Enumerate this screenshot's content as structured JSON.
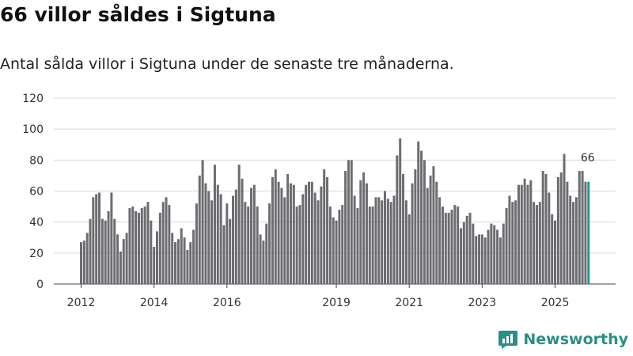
{
  "title": "66 villor såldes i Sigtuna",
  "subtitle": "Antal sålda villor i Sigtuna under de senaste tre månaderna.",
  "brand": {
    "name": "Newsworthy",
    "icon": "newsworthy-logo-icon",
    "color": "#2a8f86"
  },
  "colors": {
    "bar": "#6d6c71",
    "latest": "#1b9a8f"
  },
  "chart_data": {
    "type": "bar",
    "title": "66 villor såldes i Sigtuna",
    "subtitle": "Antal sålda villor i Sigtuna under de senaste tre månaderna.",
    "xlabel": "",
    "ylabel": "",
    "ylim": [
      0,
      120
    ],
    "yticks": [
      0,
      20,
      40,
      60,
      80,
      100,
      120
    ],
    "x_start": "2012-01",
    "x_end": "2025-12",
    "xticks": [
      {
        "label": "2012",
        "index": 0
      },
      {
        "label": "2014",
        "index": 24
      },
      {
        "label": "2016",
        "index": 48
      },
      {
        "label": "2019",
        "index": 84
      },
      {
        "label": "2021",
        "index": 108
      },
      {
        "label": "2023",
        "index": 132
      },
      {
        "label": "2025",
        "index": 156
      }
    ],
    "highlight": {
      "index": 167,
      "label": "66"
    },
    "values": [
      27,
      28,
      33,
      42,
      56,
      58,
      59,
      42,
      41,
      47,
      59,
      42,
      32,
      21,
      29,
      33,
      49,
      50,
      47,
      46,
      49,
      50,
      53,
      41,
      24,
      34,
      46,
      53,
      56,
      51,
      33,
      27,
      29,
      36,
      30,
      22,
      27,
      35,
      52,
      70,
      80,
      65,
      60,
      54,
      77,
      64,
      58,
      38,
      52,
      42,
      57,
      61,
      77,
      68,
      53,
      50,
      62,
      64,
      50,
      32,
      28,
      39,
      52,
      69,
      74,
      66,
      62,
      56,
      71,
      65,
      64,
      50,
      51,
      58,
      64,
      66,
      66,
      59,
      54,
      63,
      74,
      69,
      50,
      43,
      41,
      48,
      51,
      73,
      80,
      80,
      57,
      49,
      67,
      72,
      65,
      50,
      50,
      56,
      56,
      54,
      60,
      55,
      53,
      57,
      83,
      94,
      71,
      54,
      45,
      65,
      74,
      92,
      86,
      80,
      62,
      70,
      76,
      66,
      56,
      50,
      46,
      46,
      48,
      51,
      50,
      36,
      40,
      44,
      46,
      39,
      31,
      32,
      32,
      30,
      35,
      39,
      38,
      35,
      30,
      39,
      49,
      57,
      53,
      54,
      64,
      64,
      68,
      64,
      67,
      53,
      51,
      53,
      73,
      71,
      59,
      45,
      41,
      69,
      72,
      84,
      66,
      57,
      53,
      56,
      73,
      73,
      66,
      66
    ]
  }
}
